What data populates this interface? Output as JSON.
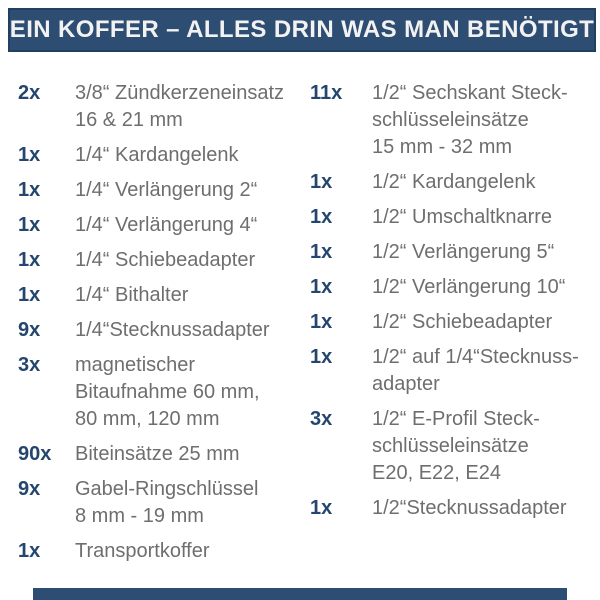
{
  "header": {
    "title": "EIN KOFFER – ALLES DRIN WAS MAN BENÖTIGT"
  },
  "colors": {
    "bar_background": "#2e4d72",
    "bar_border": "#223f60",
    "header_text": "#f2f2f2",
    "quantity_text": "#24466e",
    "description_text": "#6e6e6e",
    "page_background": "#ffffff"
  },
  "columns": {
    "left": [
      {
        "qty": "2x",
        "lines": [
          "3/8“ Zündkerzeneinsatz",
          "16 & 21 mm"
        ]
      },
      {
        "qty": "1x",
        "lines": [
          "1/4“ Kardangelenk"
        ]
      },
      {
        "qty": "1x",
        "lines": [
          "1/4“ Verlängerung 2“"
        ]
      },
      {
        "qty": "1x",
        "lines": [
          "1/4“ Verlängerung 4“"
        ]
      },
      {
        "qty": "1x",
        "lines": [
          "1/4“ Schiebeadapter"
        ]
      },
      {
        "qty": "1x",
        "lines": [
          "1/4“ Bithalter"
        ]
      },
      {
        "qty": "9x",
        "lines": [
          "1/4“Stecknussadapter"
        ]
      },
      {
        "qty": "3x",
        "lines": [
          "magnetischer",
          "Bitaufnahme 60 mm,",
          "80 mm, 120 mm"
        ]
      },
      {
        "qty": "90x",
        "lines": [
          "Biteinsätze 25 mm"
        ]
      },
      {
        "qty": "9x",
        "lines": [
          "Gabel-Ringschlüssel",
          "8 mm - 19 mm"
        ]
      },
      {
        "qty": "1x",
        "lines": [
          "Transportkoffer"
        ]
      }
    ],
    "right": [
      {
        "qty": "11x",
        "lines": [
          "1/2“ Sechskant Steck-",
          "schlüsseleinsätze",
          "15 mm - 32 mm"
        ]
      },
      {
        "qty": "1x",
        "lines": [
          "1/2“ Kardangelenk"
        ]
      },
      {
        "qty": "1x",
        "lines": [
          "1/2“ Umschaltknarre"
        ]
      },
      {
        "qty": "1x",
        "lines": [
          "1/2“ Verlängerung 5“"
        ]
      },
      {
        "qty": "1x",
        "lines": [
          "1/2“ Verlängerung 10“"
        ]
      },
      {
        "qty": "1x",
        "lines": [
          "1/2“ Schiebeadapter"
        ]
      },
      {
        "qty": "1x",
        "lines": [
          "1/2“ auf 1/4“Stecknuss-",
          "adapter"
        ]
      },
      {
        "qty": "3x",
        "lines": [
          "1/2“ E-Profil Steck-",
          "schlüsseleinsätze",
          "E20, E22, E24"
        ]
      },
      {
        "qty": "1x",
        "lines": [
          "1/2“Stecknussadapter"
        ]
      }
    ]
  }
}
